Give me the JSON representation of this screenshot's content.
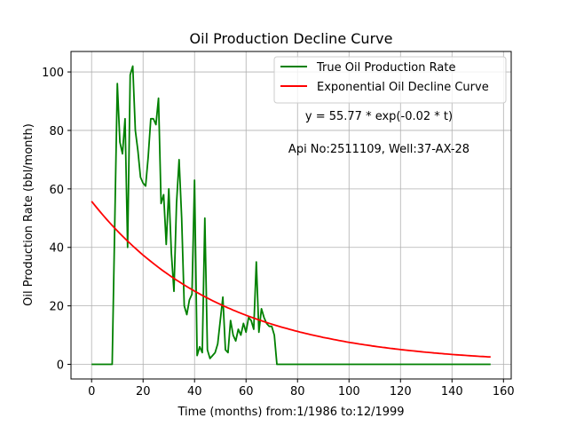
{
  "chart_data": {
    "type": "line",
    "title": "Oil Production Decline Curve",
    "xlabel": "Time (months) from:1/1986 to:12/1999",
    "ylabel": "Oil Production Rate (bbl/month)",
    "xlim": [
      -8,
      163
    ],
    "ylim": [
      -5,
      107
    ],
    "xticks": [
      0,
      20,
      40,
      60,
      80,
      100,
      120,
      140,
      160
    ],
    "yticks": [
      0,
      20,
      40,
      60,
      80,
      100
    ],
    "grid": true,
    "legend_position": "top-right",
    "annotations": {
      "equation": "y = 55.77 * exp(-0.02 * t)",
      "well": "Api No:2511109, Well:37-AX-28"
    },
    "series": [
      {
        "name": "True Oil Production Rate",
        "color": "#008000",
        "x": [
          0,
          8,
          10,
          11,
          12,
          13,
          14,
          15,
          16,
          17,
          18,
          19,
          20,
          21,
          22,
          23,
          24,
          25,
          26,
          27,
          28,
          29,
          30,
          31,
          32,
          33,
          34,
          35,
          36,
          37,
          38,
          39,
          40,
          41,
          42,
          43,
          44,
          45,
          46,
          47,
          48,
          49,
          50,
          51,
          52,
          53,
          54,
          55,
          56,
          57,
          58,
          59,
          60,
          61,
          62,
          63,
          64,
          65,
          66,
          67,
          68,
          69,
          70,
          71,
          72,
          155
        ],
        "y": [
          0,
          0,
          96,
          76,
          72,
          84,
          40,
          99,
          102,
          80,
          73,
          64,
          62,
          61,
          71,
          84,
          84,
          82,
          91,
          55,
          58,
          41,
          60,
          38,
          25,
          55,
          70,
          50,
          20,
          17,
          22,
          24,
          63,
          3,
          6,
          4,
          50,
          5,
          2,
          3,
          4,
          7,
          15,
          23,
          5,
          4,
          15,
          10,
          8,
          12,
          10,
          14,
          11,
          16,
          15,
          12,
          35,
          11,
          19,
          16,
          14,
          13,
          13,
          10,
          0,
          0
        ]
      },
      {
        "name": "Exponential Oil Decline Curve",
        "color": "#ff0000",
        "model": {
          "a": 55.77,
          "b": 0.02
        },
        "x_range": [
          0,
          155
        ]
      }
    ]
  }
}
